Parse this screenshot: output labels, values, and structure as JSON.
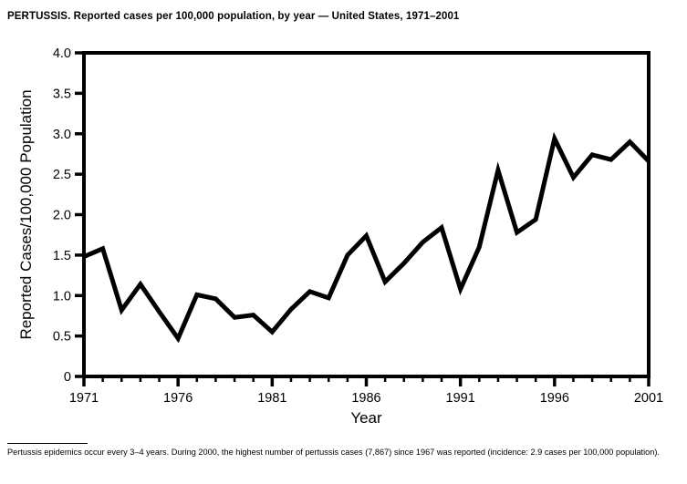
{
  "page": {
    "title": "PERTUSSIS. Reported cases per 100,000 population, by year — United States, 1971–2001",
    "footnote": "Pertussis epidemics occur every 3–4 years. During 2000, the highest number of pertussis cases (7,867) since 1967 was reported (incidence: 2.9 cases per 100,000 population)."
  },
  "chart_data": {
    "type": "line",
    "title": "PERTUSSIS. Reported cases per 100,000 population, by year — United States, 1971–2001",
    "xlabel": "Year",
    "ylabel": "Reported Cases/100,000 Population",
    "x": [
      1971,
      1972,
      1973,
      1974,
      1975,
      1976,
      1977,
      1978,
      1979,
      1980,
      1981,
      1982,
      1983,
      1984,
      1985,
      1986,
      1987,
      1988,
      1989,
      1990,
      1991,
      1992,
      1993,
      1994,
      1995,
      1996,
      1997,
      1998,
      1999,
      2000,
      2001
    ],
    "values": [
      1.48,
      1.58,
      0.82,
      1.14,
      0.8,
      0.47,
      1.01,
      0.96,
      0.73,
      0.76,
      0.55,
      0.83,
      1.05,
      0.97,
      1.5,
      1.74,
      1.17,
      1.4,
      1.66,
      1.84,
      1.08,
      1.6,
      2.55,
      1.78,
      1.94,
      2.94,
      2.46,
      2.74,
      2.68,
      2.9,
      2.66
    ],
    "xlim": [
      1971,
      2001
    ],
    "ylim": [
      0,
      4.0
    ],
    "ytick_values": [
      0,
      0.5,
      1.0,
      1.5,
      2.0,
      2.5,
      3.0,
      3.5,
      4.0
    ],
    "ytick_labels": [
      "0",
      "0.5",
      "1.0",
      "1.5",
      "2.0",
      "2.5",
      "3.0",
      "3.5",
      "4.0"
    ],
    "xtick_major": [
      1971,
      1976,
      1981,
      1986,
      1991,
      1996,
      2001
    ],
    "xtick_major_labels": [
      "1971",
      "1976",
      "1981",
      "1986",
      "1991",
      "1996",
      "2001"
    ],
    "xtick_minor_every": 1,
    "grid": false,
    "legend": null,
    "line_color": "#000000",
    "line_width": 5,
    "box_color": "#000000",
    "background_color": "#ffffff"
  }
}
